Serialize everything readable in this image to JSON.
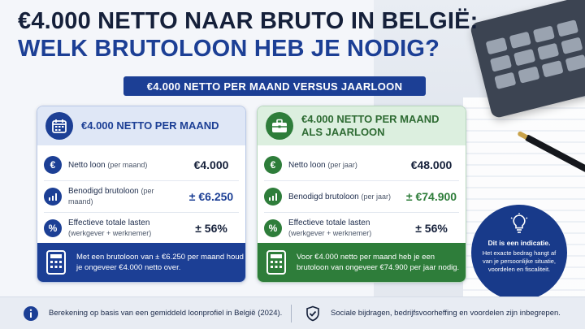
{
  "title_line1": "€4.000 NETTO NAAR BRUTO IN BELGIË:",
  "title_line2": "WELK BRUTOLOON HEB JE NODIG?",
  "banner": "€4.000 NETTO PER MAAND VERSUS JAARLOON",
  "colors": {
    "navy": "#1c3f95",
    "green": "#2e7d3a",
    "dark": "#15203a"
  },
  "card_monthly": {
    "title": "€4.000 NETTO PER MAAND",
    "icon": "calendar-icon",
    "rows": [
      {
        "icon": "euro-icon",
        "label": "Netto loon",
        "label_small": "(per maand)",
        "value": "€4.000"
      },
      {
        "icon": "growth-chart-icon",
        "label": "Benodigd brutoloon",
        "label_small": "(per maand)",
        "value": "± €6.250"
      },
      {
        "icon": "percent-icon",
        "label": "Effectieve totale lasten",
        "label_small": "(werkgever + werknemer)",
        "value": "± 56%"
      }
    ],
    "footer": "Met een brutoloon van ± €6.250 per maand houd je ongeveer €4.000 netto over."
  },
  "card_yearly": {
    "title": "€4.000 NETTO PER MAAND ALS JAARLOON",
    "icon": "briefcase-icon",
    "rows": [
      {
        "icon": "euro-icon",
        "label": "Netto loon",
        "label_small": "(per jaar)",
        "value": "€48.000"
      },
      {
        "icon": "growth-chart-icon",
        "label": "Benodigd brutoloon",
        "label_small": "(per jaar)",
        "value": "± €74.900"
      },
      {
        "icon": "percent-icon",
        "label": "Effectieve totale lasten",
        "label_small": "(werkgever + werknemer)",
        "value": "± 56%"
      }
    ],
    "footer": "Voor €4.000 netto per maand heb je een brutoloon van ongeveer €74.900 per jaar nodig."
  },
  "indication": {
    "title": "Dit is een indicatie.",
    "text": "Het exacte bedrag hangt af van je persoonlijke situatie, voordelen en fiscaliteit."
  },
  "bottom": {
    "left": "Berekening op basis van een gemiddeld loonprofiel in België (2024).",
    "right": "Sociale bijdragen, bedrijfsvoorheffing en voordelen zijn inbegrepen."
  }
}
